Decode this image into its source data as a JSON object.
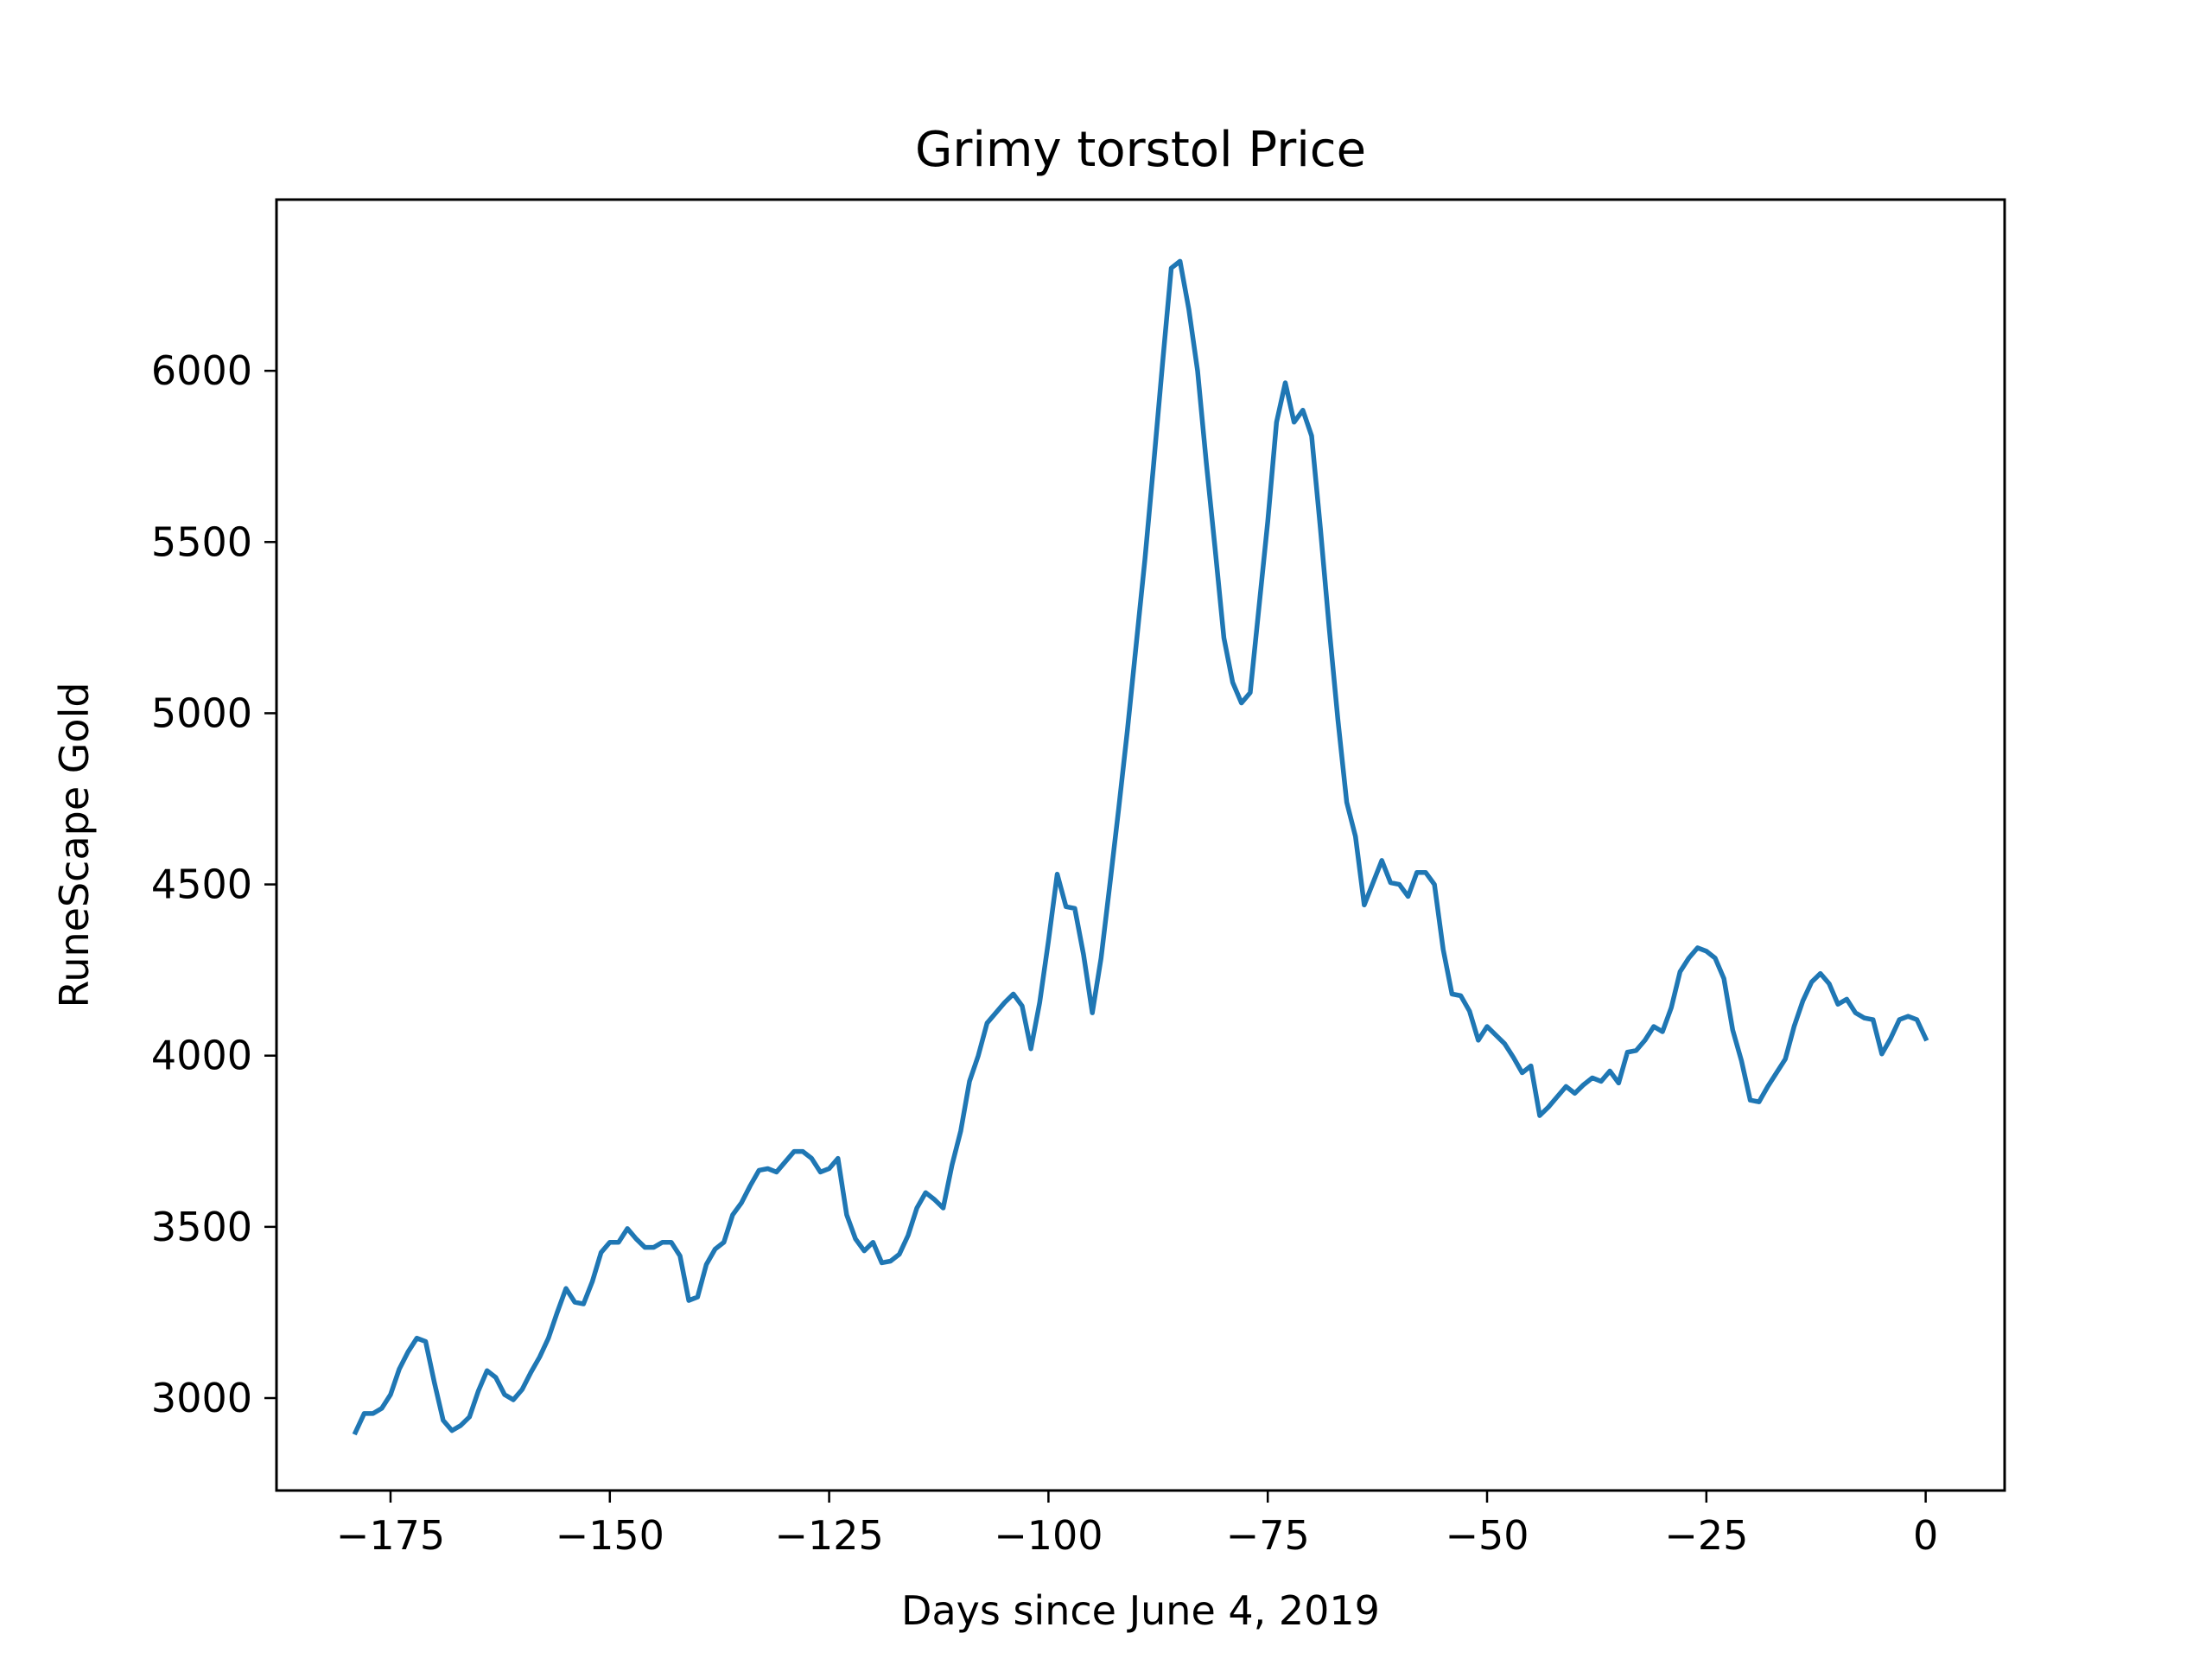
{
  "chart_data": {
    "type": "line",
    "title": "Grimy torstol Price",
    "xlabel": "Days since June 4, 2019",
    "ylabel": "RuneScape Gold",
    "xlim": [
      -188,
      9
    ],
    "ylim": [
      2730,
      6500
    ],
    "xticks": [
      -175,
      -150,
      -125,
      -100,
      -75,
      -50,
      -25,
      0
    ],
    "xtick_labels": [
      "−175",
      "−150",
      "−125",
      "−100",
      "−75",
      "−50",
      "−25",
      "0"
    ],
    "yticks": [
      3000,
      3500,
      4000,
      4500,
      5000,
      5500,
      6000
    ],
    "ytick_labels": [
      "3000",
      "3500",
      "4000",
      "4500",
      "5000",
      "5500",
      "6000"
    ],
    "grid": false,
    "legend": false,
    "series": [
      {
        "color": "#1f77b4",
        "x": [
          -179,
          -178,
          -177,
          -176,
          -175,
          -174,
          -173,
          -172,
          -171,
          -170,
          -169,
          -168,
          -167,
          -166,
          -165,
          -164,
          -163,
          -162,
          -161,
          -160,
          -159,
          -158,
          -157,
          -156,
          -155,
          -154,
          -153,
          -152,
          -151,
          -150,
          -149,
          -148,
          -147,
          -146,
          -145,
          -144,
          -143,
          -142,
          -141,
          -140,
          -139,
          -138,
          -137,
          -136,
          -135,
          -134,
          -133,
          -132,
          -131,
          -130,
          -129,
          -128,
          -127,
          -126,
          -125,
          -124,
          -123,
          -122,
          -121,
          -120,
          -119,
          -118,
          -117,
          -116,
          -115,
          -114,
          -113,
          -112,
          -111,
          -110,
          -109,
          -108,
          -107,
          -106,
          -105,
          -104,
          -103,
          -102,
          -101,
          -100,
          -99,
          -98,
          -97,
          -96,
          -95,
          -94,
          -93,
          -92,
          -91,
          -90,
          -89,
          -88,
          -87,
          -86,
          -85,
          -84,
          -83,
          -82,
          -81,
          -80,
          -79,
          -78,
          -77,
          -76,
          -75,
          -74,
          -73,
          -72,
          -71,
          -70,
          -69,
          -68,
          -67,
          -66,
          -65,
          -64,
          -63,
          -62,
          -61,
          -60,
          -59,
          -58,
          -57,
          -56,
          -55,
          -54,
          -53,
          -52,
          -51,
          -50,
          -49,
          -48,
          -47,
          -46,
          -45,
          -44,
          -43,
          -42,
          -41,
          -40,
          -39,
          -38,
          -37,
          -36,
          -35,
          -34,
          -33,
          -32,
          -31,
          -30,
          -29,
          -28,
          -27,
          -26,
          -25,
          -24,
          -23,
          -22,
          -21,
          -20,
          -19,
          -18,
          -17,
          -16,
          -15,
          -14,
          -13,
          -12,
          -11,
          -10,
          -9,
          -8,
          -7,
          -6,
          -5,
          -4,
          -3,
          -2,
          -1,
          0
        ],
        "y": [
          2900,
          2955,
          2955,
          2970,
          3010,
          3085,
          3135,
          3175,
          3165,
          3045,
          2935,
          2905,
          2920,
          2945,
          3020,
          3080,
          3060,
          3010,
          2995,
          3025,
          3075,
          3120,
          3175,
          3250,
          3320,
          3280,
          3275,
          3340,
          3425,
          3455,
          3455,
          3495,
          3465,
          3440,
          3440,
          3455,
          3455,
          3415,
          3285,
          3295,
          3390,
          3435,
          3455,
          3535,
          3570,
          3620,
          3665,
          3670,
          3660,
          3690,
          3720,
          3720,
          3700,
          3660,
          3670,
          3700,
          3535,
          3465,
          3430,
          3455,
          3395,
          3400,
          3420,
          3475,
          3555,
          3600,
          3580,
          3555,
          3680,
          3780,
          3925,
          4000,
          4095,
          4125,
          4155,
          4180,
          4145,
          4020,
          4155,
          4335,
          4530,
          4435,
          4430,
          4295,
          4125,
          4285,
          4500,
          4720,
          4950,
          5200,
          5450,
          5730,
          6020,
          6300,
          6320,
          6180,
          6000,
          5730,
          5480,
          5220,
          5090,
          5030,
          5060,
          5310,
          5560,
          5850,
          5965,
          5850,
          5885,
          5810,
          5540,
          5250,
          4980,
          4740,
          4640,
          4440,
          4505,
          4570,
          4505,
          4500,
          4465,
          4535,
          4535,
          4500,
          4310,
          4180,
          4175,
          4130,
          4045,
          4085,
          4060,
          4035,
          3995,
          3950,
          3970,
          3825,
          3850,
          3880,
          3910,
          3890,
          3915,
          3935,
          3925,
          3955,
          3920,
          4010,
          4015,
          4045,
          4085,
          4070,
          4140,
          4245,
          4285,
          4315,
          4305,
          4285,
          4225,
          4075,
          3985,
          3870,
          3865,
          3910,
          3950,
          3990,
          4085,
          4160,
          4215,
          4240,
          4210,
          4150,
          4165,
          4125,
          4110,
          4105,
          4005,
          4050,
          4105,
          4115,
          4105,
          4050
        ]
      }
    ]
  }
}
